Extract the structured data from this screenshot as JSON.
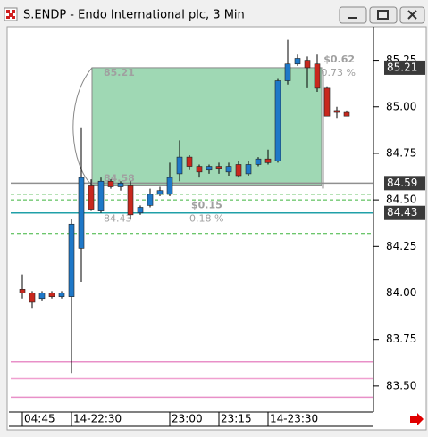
{
  "window": {
    "title": "S.ENDP - Endo International plc, 3 Min"
  },
  "chart_data": {
    "type": "candlestick",
    "categories": [
      "04:45",
      null,
      null,
      null,
      null,
      "14-22:30",
      null,
      null,
      null,
      null,
      null,
      null,
      null,
      null,
      null,
      "23:00",
      null,
      null,
      null,
      null,
      "23:15",
      null,
      null,
      null,
      null,
      "14-23:30",
      null,
      null,
      null,
      null,
      null,
      null,
      null,
      null
    ],
    "up_color": "#1e78c8",
    "down_color": "#c8281e",
    "candles": [
      {
        "open": 84.02,
        "high": 84.1,
        "low": 83.97,
        "close": 84.0
      },
      {
        "open": 84.0,
        "high": 84.01,
        "low": 83.92,
        "close": 83.95
      },
      {
        "open": 83.97,
        "high": 84.01,
        "low": 83.96,
        "close": 84.0
      },
      {
        "open": 84.0,
        "high": 84.01,
        "low": 83.97,
        "close": 83.98
      },
      {
        "open": 83.98,
        "high": 84.01,
        "low": 83.97,
        "close": 84.0
      },
      {
        "open": 83.98,
        "high": 84.4,
        "low": 83.57,
        "close": 84.37
      },
      {
        "open": 84.24,
        "high": 84.89,
        "low": 84.06,
        "close": 84.62
      },
      {
        "open": 84.58,
        "high": 84.61,
        "low": 84.44,
        "close": 84.45
      },
      {
        "open": 84.44,
        "high": 84.62,
        "low": 84.43,
        "close": 84.6
      },
      {
        "open": 84.6,
        "high": 84.61,
        "low": 84.56,
        "close": 84.57
      },
      {
        "open": 84.57,
        "high": 84.6,
        "low": 84.55,
        "close": 84.59
      },
      {
        "open": 84.58,
        "high": 84.6,
        "low": 84.4,
        "close": 84.42
      },
      {
        "open": 84.43,
        "high": 84.47,
        "low": 84.42,
        "close": 84.46
      },
      {
        "open": 84.47,
        "high": 84.56,
        "low": 84.46,
        "close": 84.53
      },
      {
        "open": 84.53,
        "high": 84.57,
        "low": 84.52,
        "close": 84.55
      },
      {
        "open": 84.53,
        "high": 84.7,
        "low": 84.52,
        "close": 84.62
      },
      {
        "open": 84.64,
        "high": 84.82,
        "low": 84.6,
        "close": 84.73
      },
      {
        "open": 84.73,
        "high": 84.74,
        "low": 84.66,
        "close": 84.68
      },
      {
        "open": 84.68,
        "high": 84.69,
        "low": 84.62,
        "close": 84.65
      },
      {
        "open": 84.66,
        "high": 84.69,
        "low": 84.64,
        "close": 84.68
      },
      {
        "open": 84.68,
        "high": 84.7,
        "low": 84.64,
        "close": 84.67
      },
      {
        "open": 84.65,
        "high": 84.7,
        "low": 84.63,
        "close": 84.68
      },
      {
        "open": 84.69,
        "high": 84.71,
        "low": 84.62,
        "close": 84.63
      },
      {
        "open": 84.64,
        "high": 84.71,
        "low": 84.63,
        "close": 84.69
      },
      {
        "open": 84.69,
        "high": 84.73,
        "low": 84.68,
        "close": 84.72
      },
      {
        "open": 84.72,
        "high": 84.77,
        "low": 84.69,
        "close": 84.7
      },
      {
        "open": 84.71,
        "high": 85.15,
        "low": 84.7,
        "close": 85.14
      },
      {
        "open": 85.14,
        "high": 85.36,
        "low": 85.12,
        "close": 85.23
      },
      {
        "open": 85.23,
        "high": 85.28,
        "low": 85.22,
        "close": 85.26
      },
      {
        "open": 85.25,
        "high": 85.27,
        "low": 85.1,
        "close": 85.21
      },
      {
        "open": 85.23,
        "high": 85.28,
        "low": 85.08,
        "close": 85.1
      },
      {
        "open": 85.1,
        "high": 85.11,
        "low": 84.95,
        "close": 84.95
      },
      {
        "open": 84.98,
        "high": 85.0,
        "low": 84.94,
        "close": 84.97
      },
      {
        "open": 84.97,
        "high": 84.98,
        "low": 84.95,
        "close": 84.95
      }
    ],
    "ylim": [
      83.37,
      85.43
    ],
    "yticks": [
      {
        "value": 83.5,
        "label": "83.50"
      },
      83.75,
      {
        "value": 84,
        "label": "84.00"
      },
      84.25,
      {
        "value": 84.5,
        "label": "84.50"
      },
      84.75,
      {
        "value": 85,
        "label": "85.00"
      },
      85.25
    ],
    "price_markers": [
      85.21,
      84.59,
      84.43
    ],
    "levels": [
      {
        "value": 84.59,
        "color": "#909090",
        "dash": false
      },
      {
        "value": 84.53,
        "color": "#3cb43c",
        "dash": true
      },
      {
        "value": 84.5,
        "color": "#3cb43c",
        "dash": true
      },
      {
        "value": 84.32,
        "color": "#3cb43c",
        "dash": true
      },
      {
        "value": 84.43,
        "color": "#20a0a8",
        "dash": false
      },
      {
        "value": 84.0,
        "color": "#b0b0b0",
        "dash": true
      },
      {
        "value": 83.63,
        "color": "#e890c8",
        "dash": false
      },
      {
        "value": 83.54,
        "color": "#f0a0d0",
        "dash": false
      },
      {
        "value": 83.44,
        "color": "#e890c8",
        "dash": false
      }
    ],
    "measures": [
      {
        "top": 85.21,
        "bottom": 84.58,
        "change": "$0.62",
        "percent": "0.73 %"
      },
      {
        "bottom": 84.43,
        "change": "$0.15",
        "percent": "0.18 %"
      }
    ]
  }
}
